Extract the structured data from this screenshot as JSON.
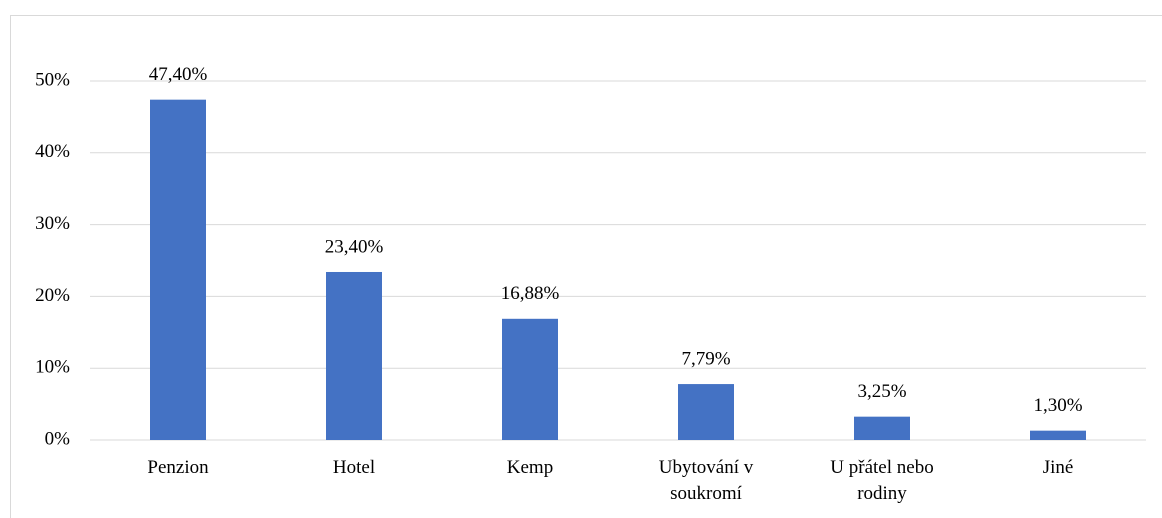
{
  "chart_data": {
    "type": "bar",
    "categories": [
      "Penzion",
      "Hotel",
      "Kemp",
      "Ubytování v soukromí",
      "U přátel nebo rodiny",
      "Jiné"
    ],
    "values": [
      47.4,
      23.4,
      16.88,
      7.79,
      3.25,
      1.3
    ],
    "value_labels": [
      "47,40%",
      "23,40%",
      "16,88%",
      "7,79%",
      "3,25%",
      "1,30%"
    ],
    "color": "#4472c4",
    "ylim": [
      0,
      50
    ],
    "yticks": [
      {
        "value": 0,
        "label": "0%"
      },
      {
        "value": 10,
        "label": "10%"
      },
      {
        "value": 20,
        "label": "20%"
      },
      {
        "value": 30,
        "label": "30%"
      },
      {
        "value": 40,
        "label": "40%"
      },
      {
        "value": 50,
        "label": "50%"
      }
    ],
    "grid": true
  }
}
